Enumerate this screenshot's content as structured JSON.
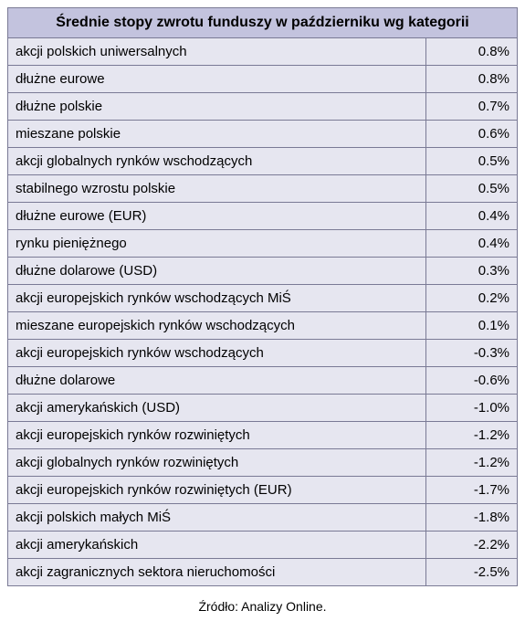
{
  "type": "table",
  "title": "Średnie stopy zwrotu funduszy w październiku wg kategorii",
  "columns": [
    {
      "key": "category",
      "align": "left",
      "width_pct": 82
    },
    {
      "key": "value",
      "align": "right",
      "width_pct": 18
    }
  ],
  "colors": {
    "header_bg": "#c3c3de",
    "row_bg": "#e6e6f0",
    "border": "#7a7a95",
    "text": "#000000",
    "page_bg": "#ffffff"
  },
  "typography": {
    "title_fontsize_pt": 12,
    "title_weight": "bold",
    "row_fontsize_pt": 11,
    "source_fontsize_pt": 10,
    "font_family": "Arial"
  },
  "rows": [
    {
      "category": "akcji polskich uniwersalnych",
      "value": "0.8%"
    },
    {
      "category": "dłużne eurowe",
      "value": "0.8%"
    },
    {
      "category": "dłużne polskie",
      "value": "0.7%"
    },
    {
      "category": "mieszane polskie",
      "value": "0.6%"
    },
    {
      "category": "akcji globalnych rynków wschodzących",
      "value": "0.5%"
    },
    {
      "category": "stabilnego wzrostu polskie",
      "value": "0.5%"
    },
    {
      "category": "dłużne eurowe (EUR)",
      "value": "0.4%"
    },
    {
      "category": "rynku pieniężnego",
      "value": "0.4%"
    },
    {
      "category": "dłużne dolarowe (USD)",
      "value": "0.3%"
    },
    {
      "category": "akcji europejskich rynków wschodzących MiŚ",
      "value": "0.2%"
    },
    {
      "category": "mieszane europejskich rynków wschodzących",
      "value": "0.1%"
    },
    {
      "category": "akcji europejskich rynków wschodzących",
      "value": "-0.3%"
    },
    {
      "category": "dłużne dolarowe",
      "value": "-0.6%"
    },
    {
      "category": "akcji amerykańskich (USD)",
      "value": "-1.0%"
    },
    {
      "category": "akcji europejskich rynków rozwiniętych",
      "value": "-1.2%"
    },
    {
      "category": "akcji globalnych rynków rozwiniętych",
      "value": "-1.2%"
    },
    {
      "category": "akcji europejskich rynków rozwiniętych (EUR)",
      "value": "-1.7%"
    },
    {
      "category": "akcji polskich małych MiŚ",
      "value": "-1.8%"
    },
    {
      "category": "akcji amerykańskich",
      "value": "-2.2%"
    },
    {
      "category": "akcji zagranicznych sektora nieruchomości",
      "value": "-2.5%"
    }
  ],
  "source": "Źródło: Analizy Online."
}
